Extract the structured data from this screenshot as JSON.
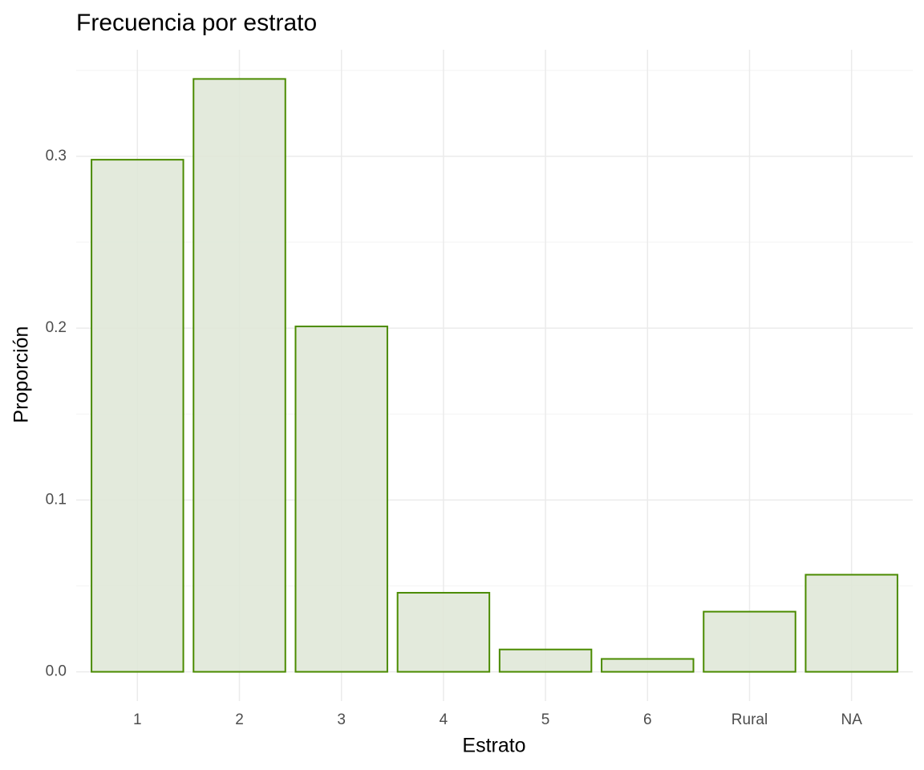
{
  "chart_data": {
    "type": "bar",
    "title": "Frecuencia por estrato",
    "x_label": "Estrato",
    "y_label": "Proporción",
    "categories": [
      "1",
      "2",
      "3",
      "4",
      "5",
      "6",
      "Rural",
      "NA"
    ],
    "values": [
      0.298,
      0.345,
      0.201,
      0.046,
      0.013,
      0.0075,
      0.035,
      0.0565
    ],
    "color": "#4b8b00",
    "fill": "#e0e8d8",
    "ylim": [
      -0.017,
      0.362
    ],
    "yticks": [
      {
        "value": 0,
        "label": "0.0"
      },
      0.1,
      0.2,
      0.3
    ],
    "minor_yticks": [
      0.05,
      0.15,
      0.25,
      0.35
    ],
    "grid": true
  }
}
